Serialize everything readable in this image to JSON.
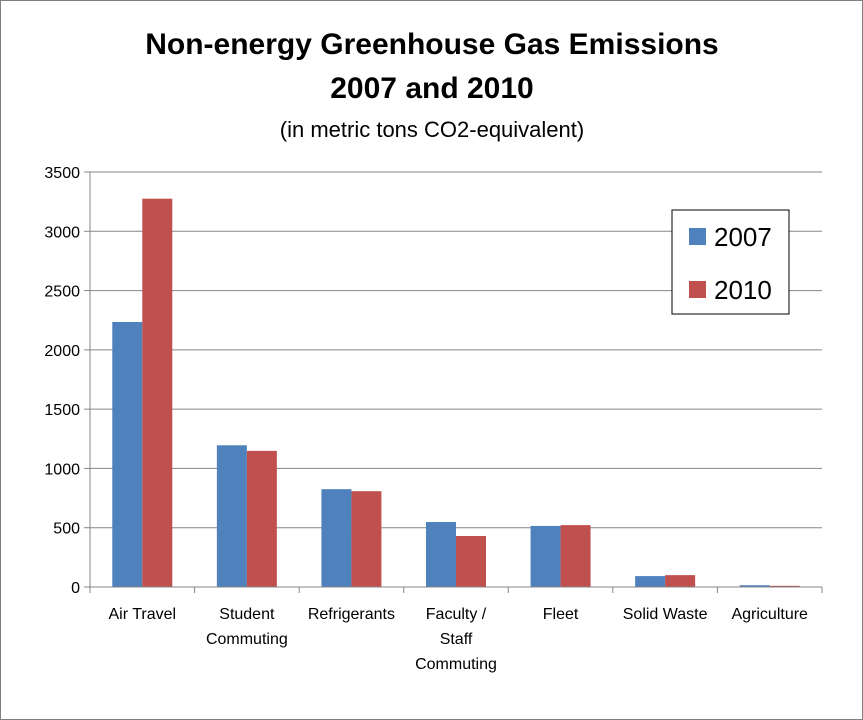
{
  "chart_data": {
    "type": "bar",
    "title_lines": [
      "Non-energy Greenhouse Gas Emissions",
      "2007 and 2010"
    ],
    "subtitle": "(in metric tons CO2-equivalent)",
    "categories": [
      [
        "Air Travel"
      ],
      [
        "Student",
        "Commuting"
      ],
      [
        "Refrigerants"
      ],
      [
        "Faculty /",
        "Staff",
        "Commuting"
      ],
      [
        "Fleet"
      ],
      [
        "Solid Waste"
      ],
      [
        "Agriculture"
      ]
    ],
    "series": [
      {
        "name": "2007",
        "color": "#4f81bd",
        "values": [
          2235,
          1195,
          825,
          548,
          515,
          92,
          15
        ]
      },
      {
        "name": "2010",
        "color": "#c0504d",
        "values": [
          3275,
          1148,
          808,
          430,
          522,
          100,
          10
        ]
      }
    ],
    "ylim": [
      0,
      3500
    ],
    "yticks": [
      0,
      500,
      1000,
      1500,
      2000,
      2500,
      3000,
      3500
    ],
    "grid": true,
    "legend_position": "top-right",
    "xlabel": "",
    "ylabel": ""
  }
}
